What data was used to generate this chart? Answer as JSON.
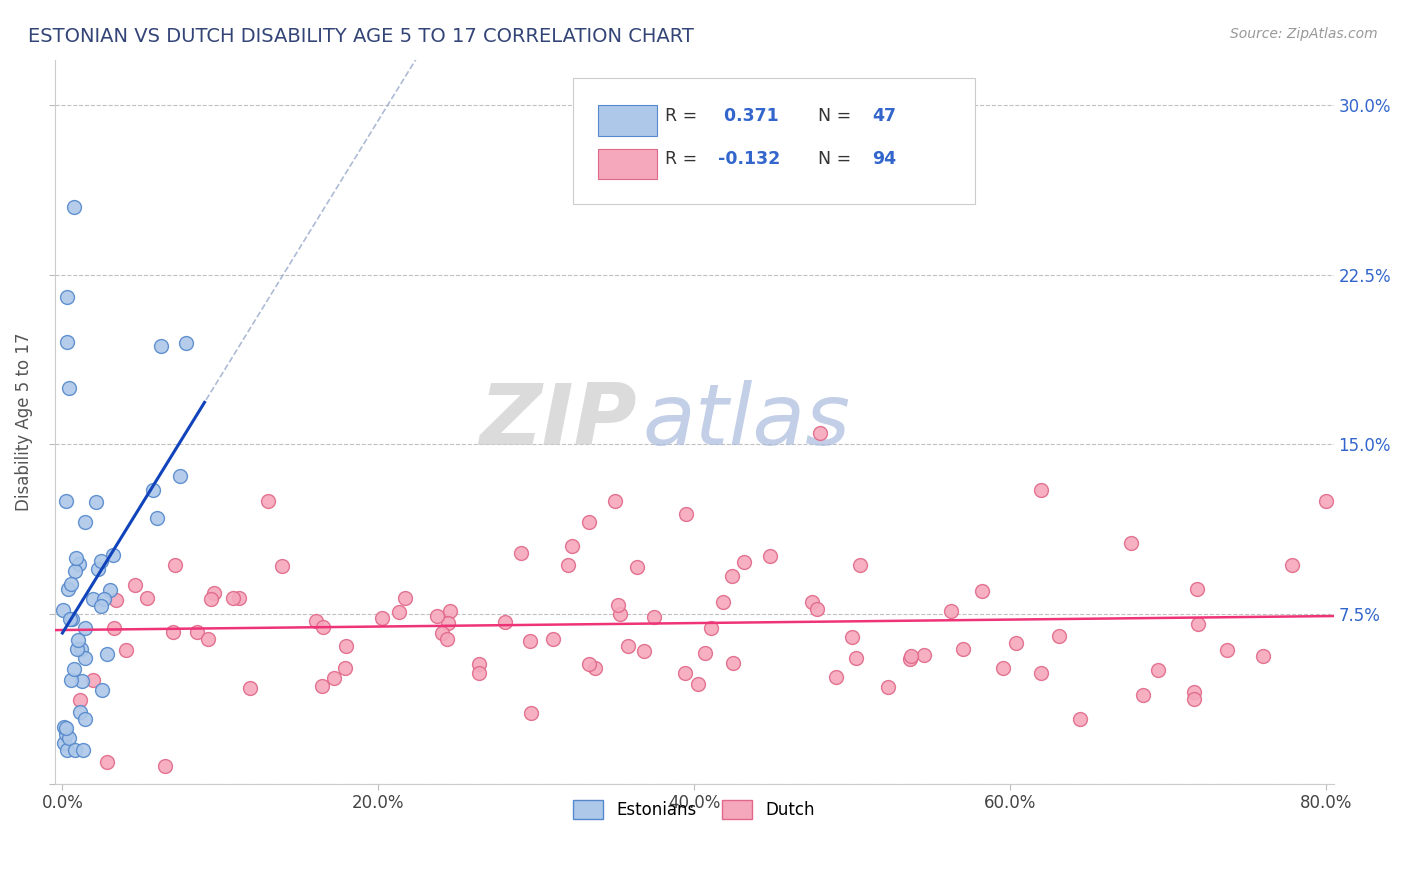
{
  "title": "ESTONIAN VS DUTCH DISABILITY AGE 5 TO 17 CORRELATION CHART",
  "source": "Source: ZipAtlas.com",
  "ylabel": "Disability Age 5 to 17",
  "xlim": [
    -0.005,
    0.805
  ],
  "ylim": [
    0.0,
    0.32
  ],
  "x_ticks": [
    0.0,
    0.2,
    0.4,
    0.6,
    0.8
  ],
  "x_tick_labels": [
    "0.0%",
    "20.0%",
    "40.0%",
    "60.0%",
    "80.0%"
  ],
  "y_ticks": [
    0.0,
    0.075,
    0.15,
    0.225,
    0.3
  ],
  "y_tick_labels": [
    "",
    "7.5%",
    "15.0%",
    "22.5%",
    "30.0%"
  ],
  "estonian_color": "#adc8e8",
  "dutch_color": "#f5a8bc",
  "estonian_edge": "#5588cc",
  "dutch_edge": "#e06888",
  "trend_estonian_color": "#1144bb",
  "trend_dutch_color": "#ee3377",
  "dashed_line_color": "#99aacc",
  "R_estonian": 0.371,
  "N_estonian": 47,
  "R_dutch": -0.132,
  "N_dutch": 94,
  "background_color": "#ffffff",
  "grid_color": "#bbbbbb",
  "title_color": "#334477",
  "axis_label_color": "#555555",
  "tick_label_color_right": "#3366cc",
  "legend_text_color": "#3366cc",
  "watermark_zip_color": "#cccccc",
  "watermark_atlas_color": "#aabbdd"
}
